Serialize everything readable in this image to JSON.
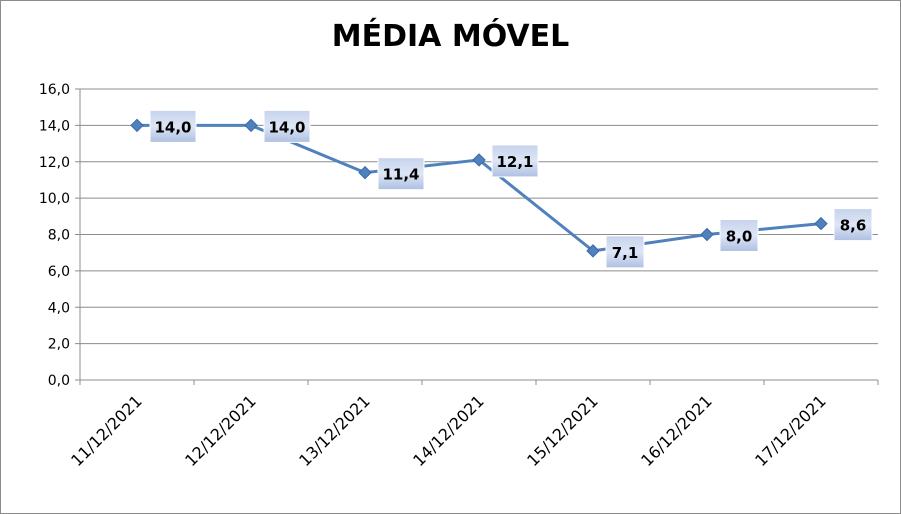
{
  "chart_data": {
    "type": "line",
    "title": "MÉDIA MÓVEL",
    "xlabel": "",
    "ylabel": "",
    "categories": [
      "11/12/2021",
      "12/12/2021",
      "13/12/2021",
      "14/12/2021",
      "15/12/2021",
      "16/12/2021",
      "17/12/2021"
    ],
    "series": [
      {
        "values": [
          14.0,
          14.0,
          11.4,
          12.1,
          7.1,
          8.0,
          8.6
        ]
      }
    ],
    "data_labels": [
      "14,0",
      "14,0",
      "11,4",
      "12,1",
      "7,1",
      "8,0",
      "8,6"
    ],
    "y_tick_labels": [
      "0,0",
      "2,0",
      "4,0",
      "6,0",
      "8,0",
      "10,0",
      "12,0",
      "14,0",
      "16,0"
    ],
    "ylim": [
      0,
      16
    ],
    "y_step": 2,
    "grid": true,
    "legend": "none",
    "line_color": "#4F81BD"
  }
}
